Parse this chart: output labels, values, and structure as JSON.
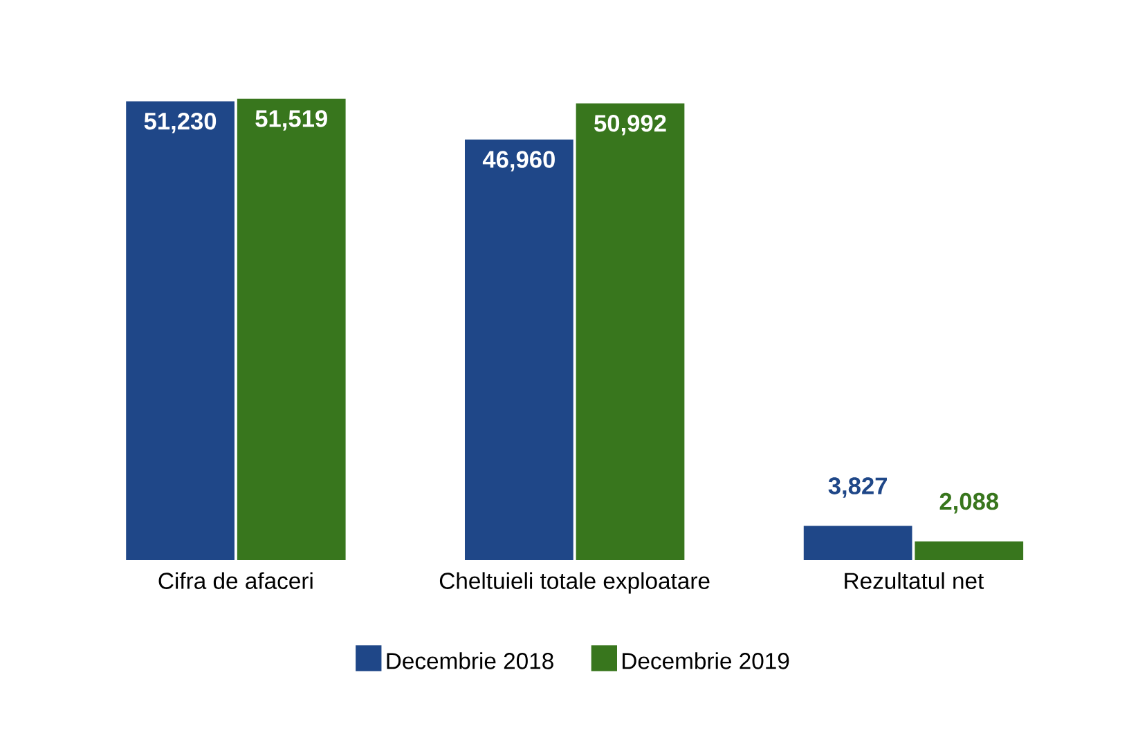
{
  "chart_data": {
    "type": "bar",
    "categories": [
      "Cifra de afaceri",
      "Cheltuieli totale exploatare",
      "Rezultatul net"
    ],
    "series": [
      {
        "name": "Decembrie 2018",
        "color": "#1f4788",
        "values": [
          51230,
          46960,
          3827
        ],
        "value_labels": [
          "51,230",
          "46,960",
          "3,827"
        ]
      },
      {
        "name": "Decembrie 2019",
        "color": "#38761d",
        "values": [
          51519,
          50992,
          2088
        ],
        "value_labels": [
          "51,519",
          "50,992",
          "2,088"
        ]
      }
    ],
    "legend": "bottom"
  }
}
